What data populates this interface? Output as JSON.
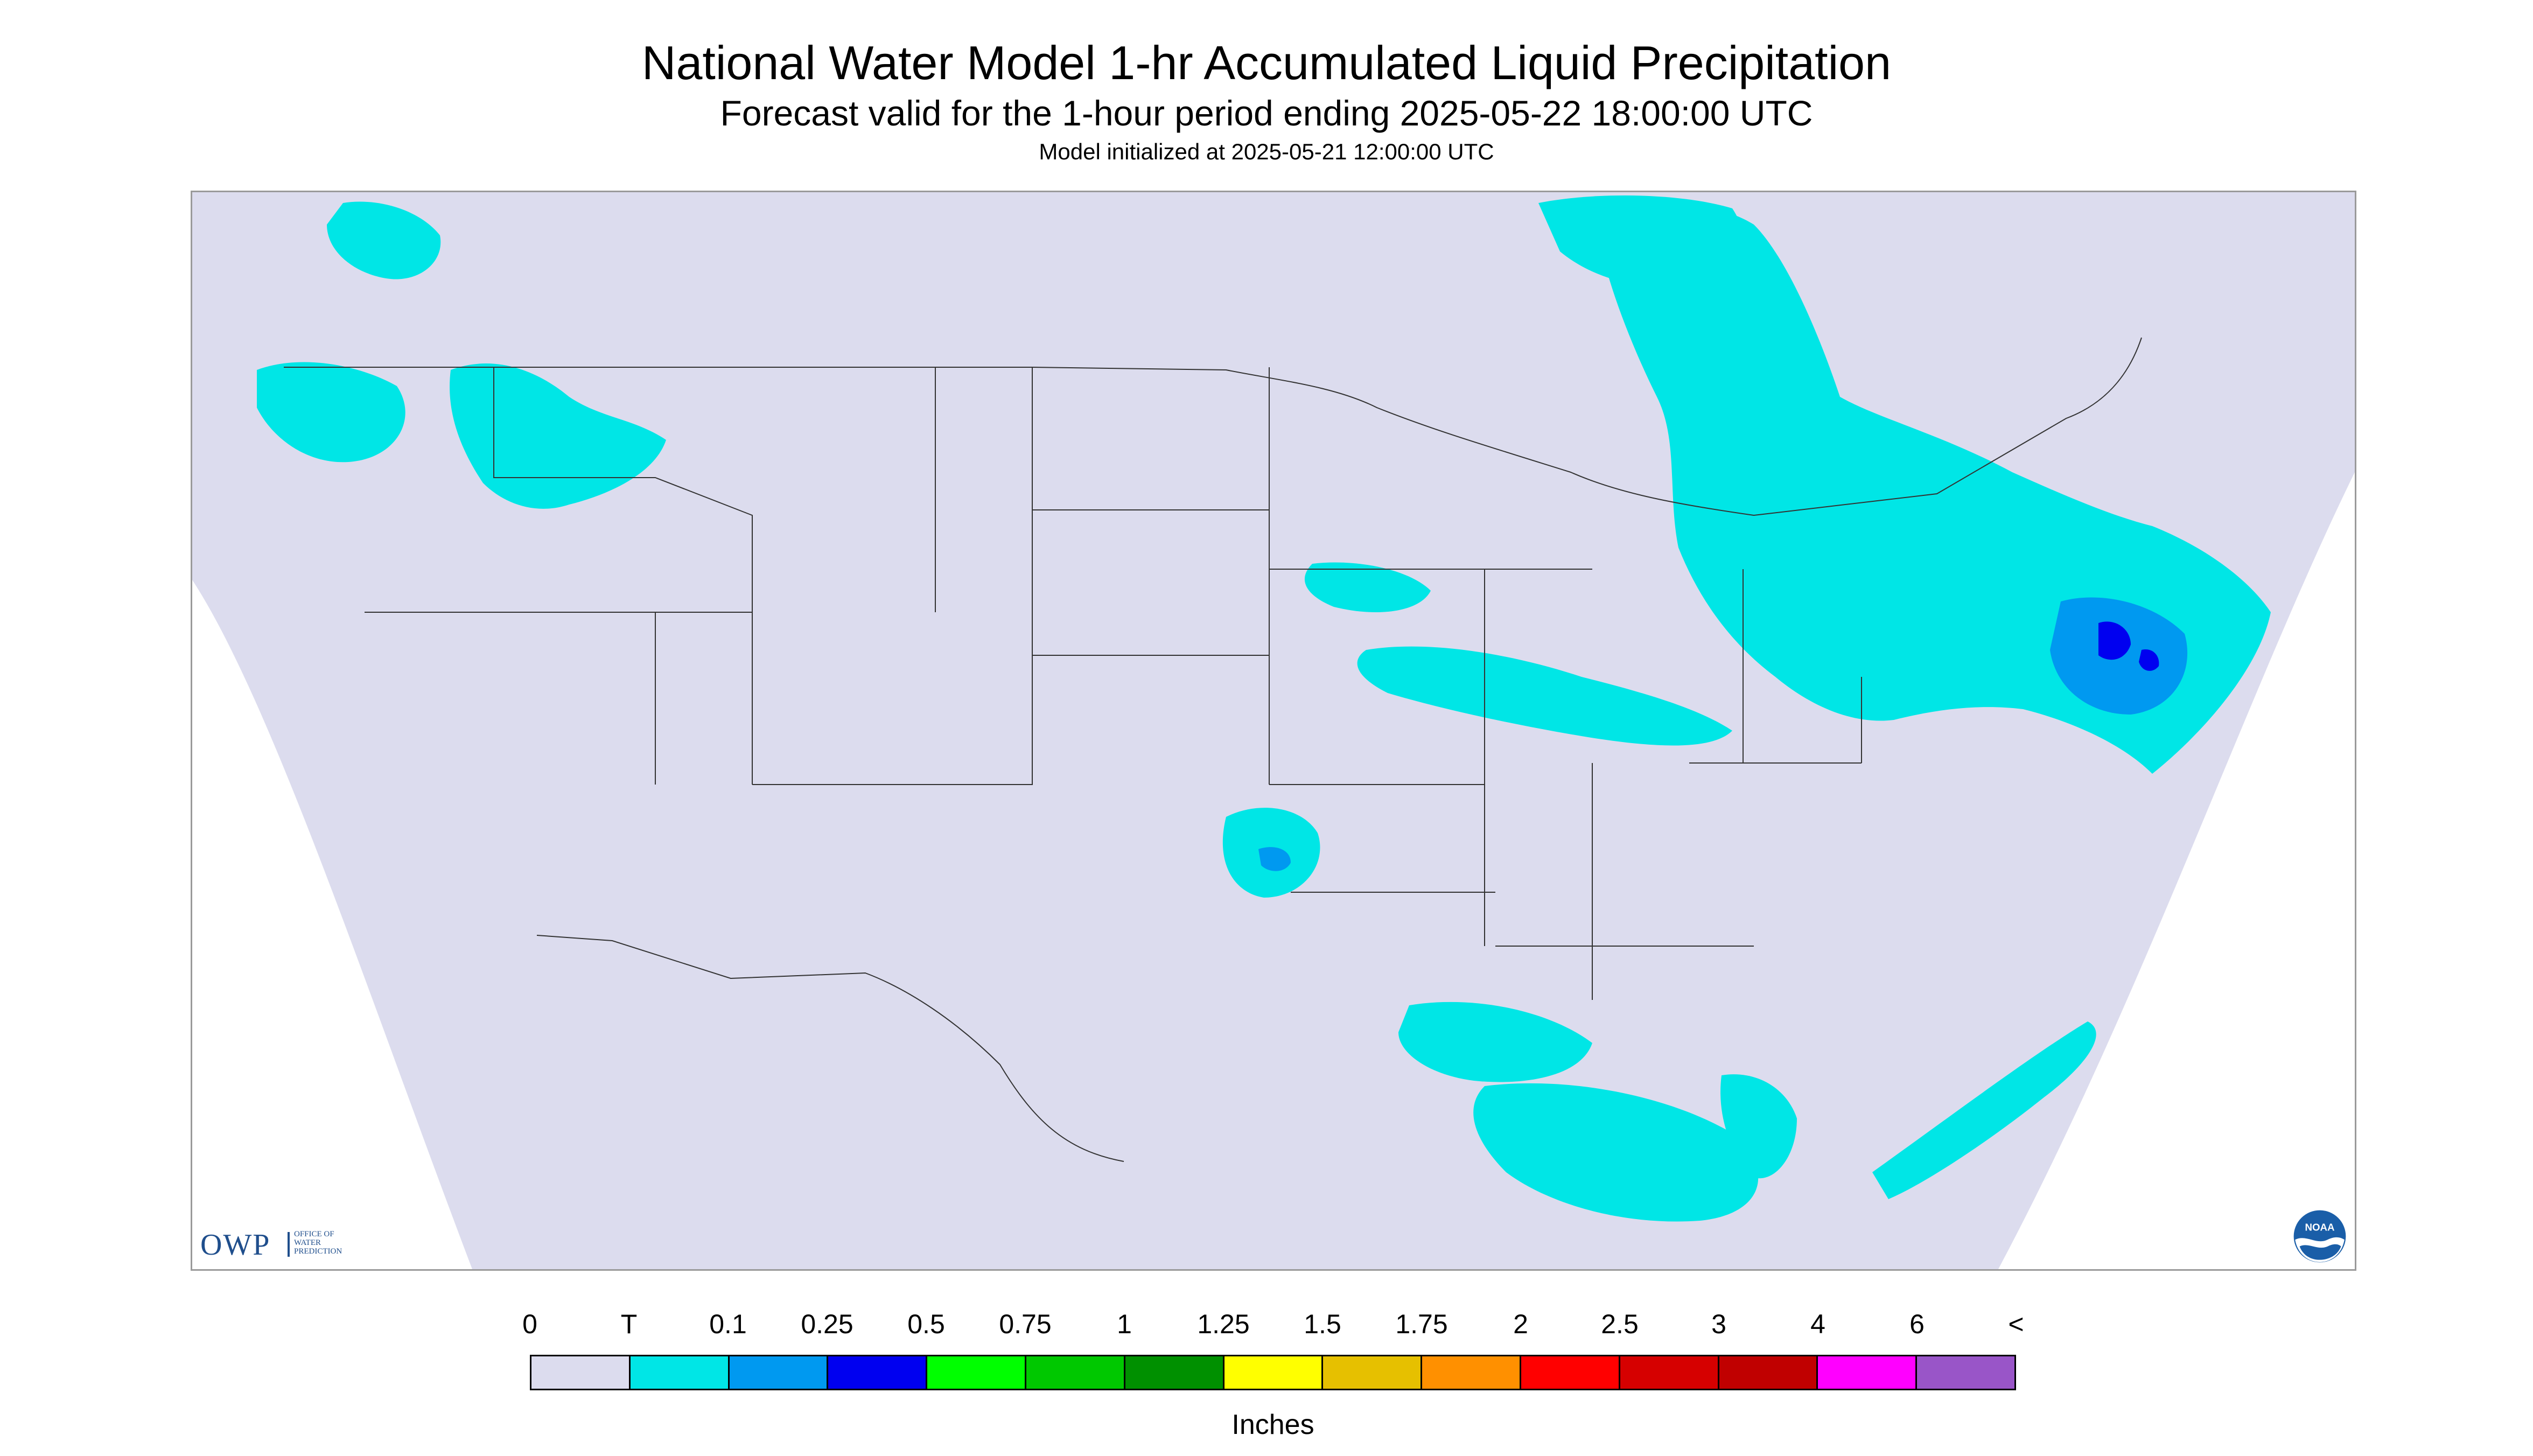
{
  "title": "National Water Model 1-hr Accumulated Liquid Precipitation",
  "subtitle": "Forecast valid for the 1-hour period ending 2025-05-22 18:00:00 UTC",
  "init_text": "Model initialized at 2025-05-21 12:00:00 UTC",
  "colors": {
    "background": "#dcdcee",
    "outside": "#ffffff",
    "boundary": "#333333"
  },
  "logos": {
    "owp_letters": "OWP",
    "owp_sub": [
      "OFFICE OF",
      "WATER",
      "PREDICTION"
    ],
    "noaa_icon": "noaa-logo-icon",
    "noaa_text": "NOAA"
  },
  "legend": {
    "unit": "Inches",
    "tick_labels": [
      "0",
      "T",
      "0.1",
      "0.25",
      "0.5",
      "0.75",
      "1",
      "1.25",
      "1.5",
      "1.75",
      "2",
      "2.5",
      "3",
      "4",
      "6",
      "<"
    ],
    "colors": [
      "#dcdcee",
      "#00e6e6",
      "#0099f0",
      "#0000f0",
      "#00ff00",
      "#00c800",
      "#009000",
      "#ffff00",
      "#e6c000",
      "#ff9000",
      "#ff0000",
      "#d60000",
      "#c00000",
      "#ff00ff",
      "#9955c8"
    ]
  },
  "chart_data": {
    "type": "heatmap",
    "title": "National Water Model 1-hr Accumulated Liquid Precipitation",
    "subtitle": "Forecast valid for the 1-hour period ending 2025-05-22 18:00:00 UTC",
    "colorbar_label": "Inches",
    "bins": [
      {
        "from": "0",
        "to": "T",
        "color": "#dcdcee"
      },
      {
        "from": "T",
        "to": "0.1",
        "color": "#00e6e6"
      },
      {
        "from": "0.1",
        "to": "0.25",
        "color": "#0099f0"
      },
      {
        "from": "0.25",
        "to": "0.5",
        "color": "#0000f0"
      },
      {
        "from": "0.5",
        "to": "0.75",
        "color": "#00ff00"
      },
      {
        "from": "0.75",
        "to": "1",
        "color": "#00c800"
      },
      {
        "from": "1",
        "to": "1.25",
        "color": "#009000"
      },
      {
        "from": "1.25",
        "to": "1.5",
        "color": "#ffff00"
      },
      {
        "from": "1.5",
        "to": "1.75",
        "color": "#e6c000"
      },
      {
        "from": "1.75",
        "to": "2",
        "color": "#ff9000"
      },
      {
        "from": "2",
        "to": "2.5",
        "color": "#ff0000"
      },
      {
        "from": "2.5",
        "to": "3",
        "color": "#d60000"
      },
      {
        "from": "3",
        "to": "4",
        "color": "#c00000"
      },
      {
        "from": "4",
        "to": "6",
        "color": "#ff00ff"
      },
      {
        "from": "6",
        "to": "<",
        "color": "#9955c8"
      }
    ]
  }
}
